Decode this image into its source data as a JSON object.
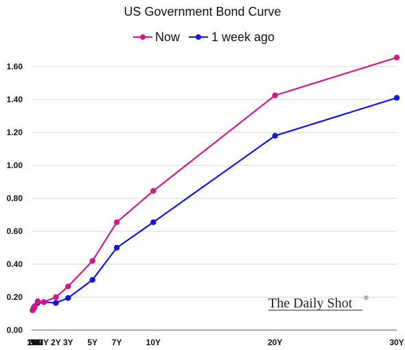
{
  "chart_data": {
    "type": "line",
    "title": "US Government Bond Curve",
    "categories": [
      "1M",
      "2M",
      "3M",
      "6M",
      "1Y",
      "2Y",
      "3Y",
      "5Y",
      "7Y",
      "10Y",
      "20Y",
      "30Y"
    ],
    "x_positions_months": [
      1,
      2,
      3,
      6,
      12,
      24,
      36,
      60,
      84,
      120,
      240,
      360
    ],
    "series": [
      {
        "name": "Now",
        "color": "#D4148C",
        "values": [
          0.12,
          0.135,
          0.145,
          0.175,
          0.17,
          0.2,
          0.265,
          0.42,
          0.655,
          0.845,
          1.425,
          1.655
        ]
      },
      {
        "name": "1 week ago",
        "color": "#1010F0",
        "values": [
          0.12,
          0.13,
          0.14,
          0.165,
          0.17,
          0.165,
          0.195,
          0.305,
          0.5,
          0.655,
          1.18,
          1.41
        ]
      }
    ],
    "yticks": [
      "0.00",
      "0.20",
      "0.40",
      "0.60",
      "0.80",
      "1.00",
      "1.20",
      "1.40",
      "1.60"
    ],
    "ylim": [
      0,
      1.7
    ],
    "grid": true,
    "legend_position": "top-center",
    "annotation": {
      "text": "The Daily Shot",
      "mark": "®"
    }
  }
}
